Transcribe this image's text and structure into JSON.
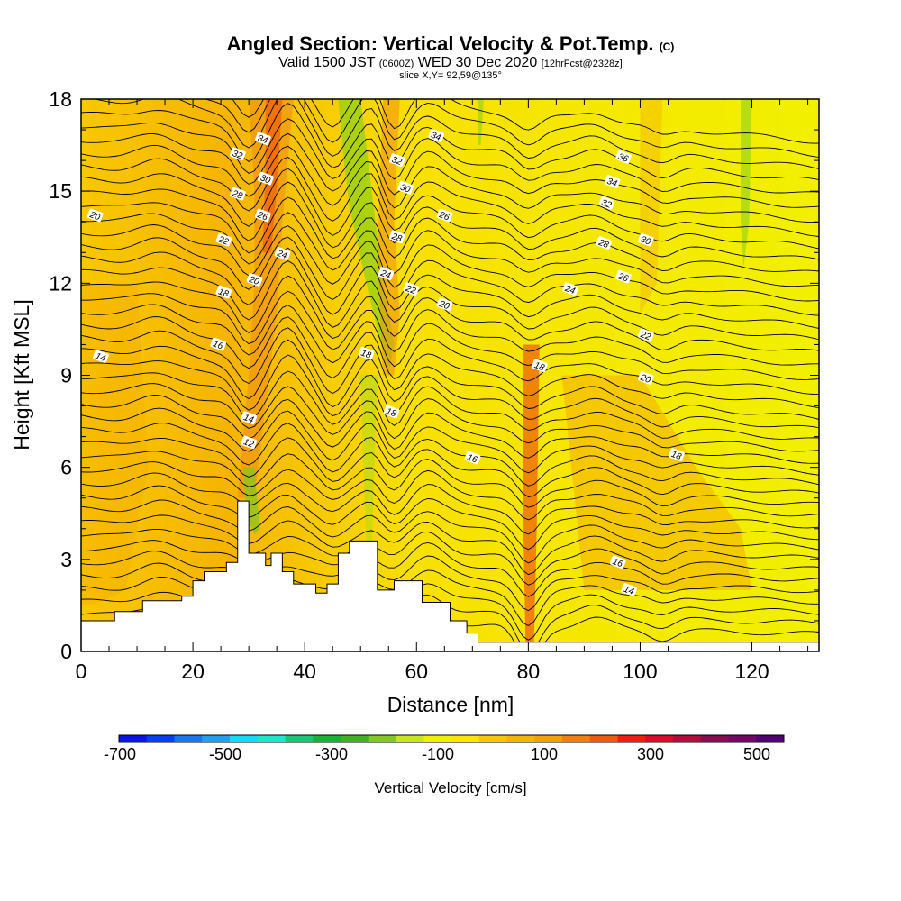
{
  "header": {
    "title": "Angled Section: Vertical Velocity & Pot.Temp.",
    "title_suffix": "(C)",
    "valid_prefix": "Valid 1500 JST",
    "valid_utc": "(0600Z)",
    "valid_date": "WED 30 Dec 2020",
    "forecast": "[12hrFcst@2328z]",
    "slice": "slice X,Y= 92,59@135°"
  },
  "chart_data": {
    "type": "cross-section",
    "xlabel": "Distance [nm]",
    "ylabel": "Height [Kft MSL]",
    "xlim": [
      0,
      132
    ],
    "ylim": [
      0,
      18
    ],
    "x_ticks": [
      0,
      20,
      40,
      60,
      80,
      100,
      120
    ],
    "y_ticks": [
      0,
      3,
      6,
      9,
      12,
      15,
      18
    ],
    "colorbar": {
      "label": "Vertical Velocity [cm/s]",
      "tick_labels": [
        "-700",
        "-500",
        "-300",
        "-100",
        "100",
        "300",
        "500"
      ],
      "colors": [
        "#0a14e6",
        "#0a3cf0",
        "#1478f0",
        "#1ea0f0",
        "#14dcf0",
        "#1ee6c8",
        "#14c878",
        "#14b43c",
        "#3cb41e",
        "#82c81e",
        "#c8e61e",
        "#f0f000",
        "#fae600",
        "#f5c800",
        "#f5b400",
        "#f5a000",
        "#f57d0a",
        "#f05a0a",
        "#f01e0a",
        "#dc0a28",
        "#b40a3c",
        "#8c0a50",
        "#6e0a64",
        "#50006e"
      ]
    },
    "contour_labels": [
      {
        "text": "34",
        "x": 32.5,
        "y": 16.7
      },
      {
        "text": "32",
        "x": 28,
        "y": 16.2
      },
      {
        "text": "30",
        "x": 33,
        "y": 15.4
      },
      {
        "text": "28",
        "x": 28,
        "y": 14.9
      },
      {
        "text": "26",
        "x": 32.5,
        "y": 14.2
      },
      {
        "text": "22",
        "x": 25.5,
        "y": 13.4
      },
      {
        "text": "24",
        "x": 36,
        "y": 12.95
      },
      {
        "text": "20",
        "x": 31,
        "y": 12.1
      },
      {
        "text": "18",
        "x": 25.5,
        "y": 11.7
      },
      {
        "text": "16",
        "x": 24.5,
        "y": 10.0
      },
      {
        "text": "14",
        "x": 3.5,
        "y": 9.6
      },
      {
        "text": "14",
        "x": 30,
        "y": 7.6
      },
      {
        "text": "12",
        "x": 30,
        "y": 6.8
      },
      {
        "text": "20",
        "x": 2.5,
        "y": 14.2
      },
      {
        "text": "34",
        "x": 63.5,
        "y": 16.8
      },
      {
        "text": "32",
        "x": 56.5,
        "y": 16.0
      },
      {
        "text": "30",
        "x": 58,
        "y": 15.1
      },
      {
        "text": "28",
        "x": 56.5,
        "y": 13.5
      },
      {
        "text": "26",
        "x": 65,
        "y": 14.2
      },
      {
        "text": "24",
        "x": 54.5,
        "y": 12.3
      },
      {
        "text": "22",
        "x": 59,
        "y": 11.8
      },
      {
        "text": "20",
        "x": 65,
        "y": 11.3
      },
      {
        "text": "18",
        "x": 51,
        "y": 9.7
      },
      {
        "text": "18",
        "x": 55.5,
        "y": 7.8
      },
      {
        "text": "16",
        "x": 70,
        "y": 6.3
      },
      {
        "text": "18",
        "x": 82,
        "y": 9.3
      },
      {
        "text": "36",
        "x": 97,
        "y": 16.1
      },
      {
        "text": "34",
        "x": 95,
        "y": 15.3
      },
      {
        "text": "32",
        "x": 94,
        "y": 14.6
      },
      {
        "text": "30",
        "x": 101,
        "y": 13.4
      },
      {
        "text": "28",
        "x": 93.5,
        "y": 13.3
      },
      {
        "text": "26",
        "x": 97,
        "y": 12.2
      },
      {
        "text": "24",
        "x": 87.5,
        "y": 11.8
      },
      {
        "text": "22",
        "x": 101,
        "y": 10.3
      },
      {
        "text": "20",
        "x": 101,
        "y": 8.9
      },
      {
        "text": "18",
        "x": 106.5,
        "y": 6.4
      },
      {
        "text": "16",
        "x": 96,
        "y": 2.9
      },
      {
        "text": "14",
        "x": 98,
        "y": 2.0
      }
    ],
    "terrain": [
      [
        0,
        1.0
      ],
      [
        6,
        1.0
      ],
      [
        6,
        1.3
      ],
      [
        11,
        1.3
      ],
      [
        11,
        1.65
      ],
      [
        18,
        1.65
      ],
      [
        18,
        1.8
      ],
      [
        20,
        1.8
      ],
      [
        20,
        2.3
      ],
      [
        22,
        2.3
      ],
      [
        22,
        2.6
      ],
      [
        26,
        2.6
      ],
      [
        26,
        2.9
      ],
      [
        28,
        2.9
      ],
      [
        28,
        4.9
      ],
      [
        30,
        4.9
      ],
      [
        30,
        3.2
      ],
      [
        33,
        3.2
      ],
      [
        33,
        2.8
      ],
      [
        34,
        2.8
      ],
      [
        34,
        3.2
      ],
      [
        36,
        3.2
      ],
      [
        36,
        2.6
      ],
      [
        38,
        2.6
      ],
      [
        38,
        2.2
      ],
      [
        42,
        2.2
      ],
      [
        42,
        1.9
      ],
      [
        44,
        1.9
      ],
      [
        44,
        2.2
      ],
      [
        46,
        2.2
      ],
      [
        46,
        3.2
      ],
      [
        48,
        3.2
      ],
      [
        48,
        3.6
      ],
      [
        53,
        3.6
      ],
      [
        53,
        2.0
      ],
      [
        56,
        2.0
      ],
      [
        56,
        2.3
      ],
      [
        61,
        2.3
      ],
      [
        61,
        1.6
      ],
      [
        66,
        1.6
      ],
      [
        66,
        1.0
      ],
      [
        69,
        1.0
      ],
      [
        69,
        0.6
      ],
      [
        71,
        0.6
      ],
      [
        71,
        0.3
      ],
      [
        132,
        0.3
      ]
    ]
  }
}
